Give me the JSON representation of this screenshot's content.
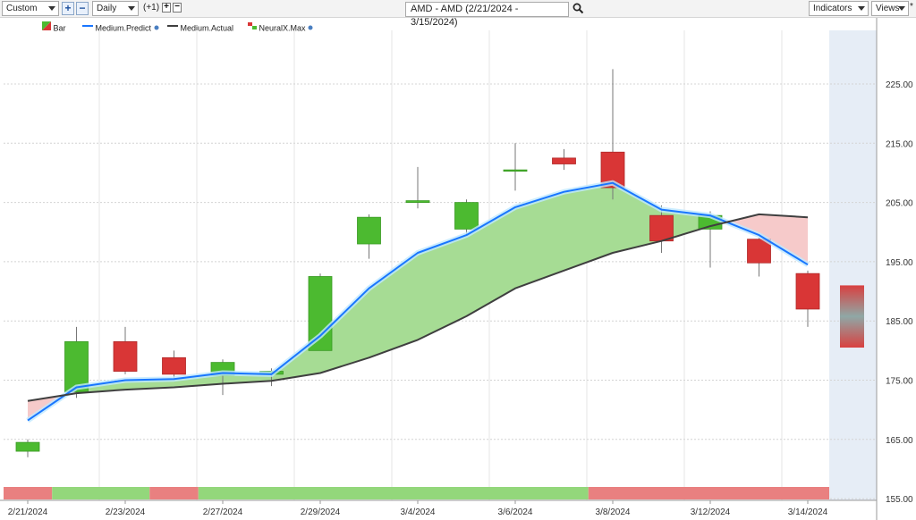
{
  "toolbar": {
    "range_select": "Custom",
    "period_select": "Daily",
    "offset_label": "(+1)",
    "symbol_query": "AMD - AMD (2/21/2024 - 3/15/2024)",
    "indicators_label": "Indicators",
    "views_label": "Views",
    "plus_glyph": "+",
    "minus_glyph": "−",
    "zoom_in_glyph": "+",
    "zoom_out_glyph": "−",
    "more_glyph": "*"
  },
  "legend": {
    "bar": "Bar",
    "predict": "Medium.Predict",
    "actual": "Medium.Actual",
    "neural": "NeuralX.Max"
  },
  "colors": {
    "up": "#4cba30",
    "down": "#d93636",
    "predict": "#1976ff",
    "actual": "#3f3f3f",
    "fill_up": "#a6dc94",
    "fill_down": "#f6caca",
    "band_up": "#93d77b",
    "band_down": "#e98080",
    "forecast_bg": "#e6edf6"
  },
  "chart_data": {
    "type": "candlestick",
    "title": "",
    "ylim": [
      155,
      230
    ],
    "yticks": [
      155,
      165,
      175,
      185,
      195,
      205,
      215,
      225
    ],
    "ytick_labels": [
      "155.00",
      "165.00",
      "175.00",
      "185.00",
      "195.00",
      "205.00",
      "215.00",
      "225.00"
    ],
    "x_labels": [
      "2/21/2024",
      "2/23/2024",
      "2/27/2024",
      "2/29/2024",
      "3/4/2024",
      "3/6/2024",
      "3/8/2024",
      "3/12/2024",
      "3/14/2024"
    ],
    "dates": [
      "2/21/2024",
      "2/22/2024",
      "2/23/2024",
      "2/26/2024",
      "2/27/2024",
      "2/28/2024",
      "2/29/2024",
      "3/1/2024",
      "3/4/2024",
      "3/5/2024",
      "3/6/2024",
      "3/7/2024",
      "3/8/2024",
      "3/11/2024",
      "3/12/2024",
      "3/13/2024",
      "3/14/2024",
      "3/15/2024"
    ],
    "ohlc": [
      {
        "o": 163.0,
        "h": 165.0,
        "l": 162.0,
        "c": 164.5
      },
      {
        "o": 173.0,
        "h": 184.0,
        "l": 172.0,
        "c": 181.5
      },
      {
        "o": 181.5,
        "h": 184.0,
        "l": 176.0,
        "c": 176.5
      },
      {
        "o": 178.8,
        "h": 180.0,
        "l": 175.0,
        "c": 176.0
      },
      {
        "o": 175.8,
        "h": 178.5,
        "l": 172.5,
        "c": 178.0
      },
      {
        "o": 176.0,
        "h": 177.0,
        "l": 174.0,
        "c": 176.5
      },
      {
        "o": 180.0,
        "h": 193.0,
        "l": 180.0,
        "c": 192.5
      },
      {
        "o": 198.0,
        "h": 203.0,
        "l": 195.5,
        "c": 202.5
      },
      {
        "o": 205.0,
        "h": 211.0,
        "l": 204.0,
        "c": 205.3
      },
      {
        "o": 200.5,
        "h": 205.5,
        "l": 199.5,
        "c": 205.0
      },
      {
        "o": 210.3,
        "h": 215.0,
        "l": 207.0,
        "c": 210.5
      },
      {
        "o": 212.5,
        "h": 214.0,
        "l": 210.5,
        "c": 211.5
      },
      {
        "o": 213.5,
        "h": 227.5,
        "l": 205.5,
        "c": 207.5
      },
      {
        "o": 202.8,
        "h": 204.5,
        "l": 196.5,
        "c": 198.5
      },
      {
        "o": 200.5,
        "h": 203.5,
        "l": 194.0,
        "c": 202.8
      },
      {
        "o": 198.8,
        "h": 199.0,
        "l": 192.5,
        "c": 194.8
      },
      {
        "o": 193.0,
        "h": 193.5,
        "l": 184.0,
        "c": 187.0
      }
    ],
    "forecast_bar": {
      "high": 191.0,
      "low": 180.5
    },
    "predict": [
      168.2,
      173.8,
      175.0,
      175.2,
      176.2,
      176.0,
      182.5,
      190.5,
      196.5,
      199.5,
      204.2,
      206.8,
      208.3,
      203.8,
      202.8,
      199.5,
      194.5
    ],
    "actual": [
      171.5,
      172.8,
      173.4,
      173.8,
      174.4,
      174.9,
      176.2,
      178.8,
      181.8,
      185.8,
      190.5,
      193.5,
      196.5,
      198.5,
      201.0,
      203.0,
      202.5
    ],
    "signal_bands": [
      {
        "from": 0,
        "to": 1,
        "signal": "down"
      },
      {
        "from": 1,
        "to": 3,
        "signal": "up"
      },
      {
        "from": 3,
        "to": 4,
        "signal": "down"
      },
      {
        "from": 4,
        "to": 12,
        "signal": "up"
      },
      {
        "from": 12,
        "to": 17,
        "signal": "down"
      }
    ]
  }
}
